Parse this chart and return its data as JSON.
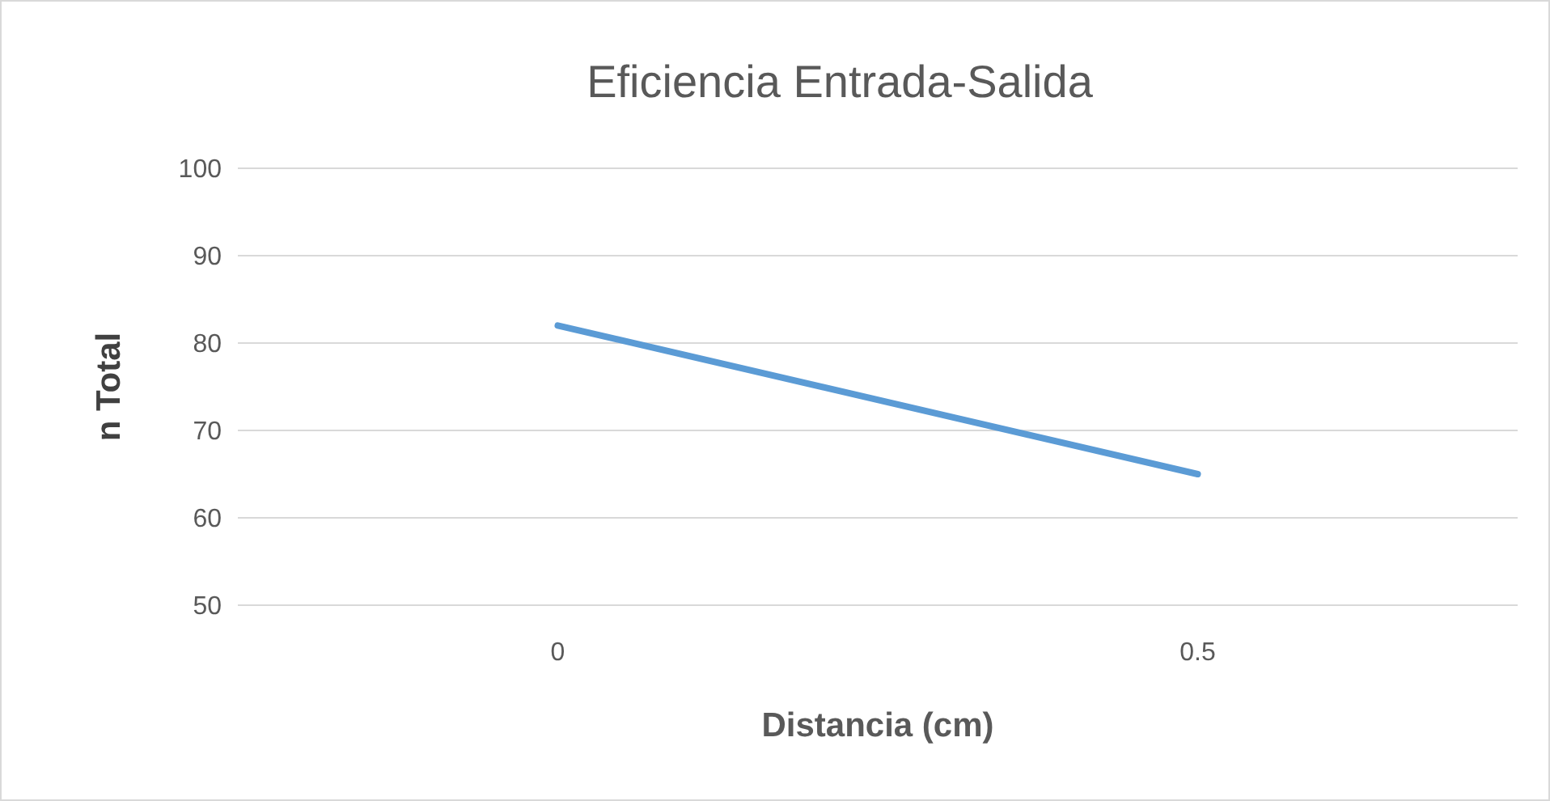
{
  "chart_data": {
    "type": "line",
    "title": "Eficiencia Entrada-Salida",
    "xlabel": "Distancia (cm)",
    "ylabel": "n Total",
    "categories": [
      "0",
      "0.5"
    ],
    "series": [
      {
        "color": "#5b9bd5",
        "values": [
          82,
          65
        ]
      }
    ],
    "ylim": [
      50,
      100
    ],
    "yticks": [
      50,
      60,
      70,
      80,
      90,
      100
    ],
    "grid": "y",
    "marker": "none",
    "line_style": "solid"
  }
}
